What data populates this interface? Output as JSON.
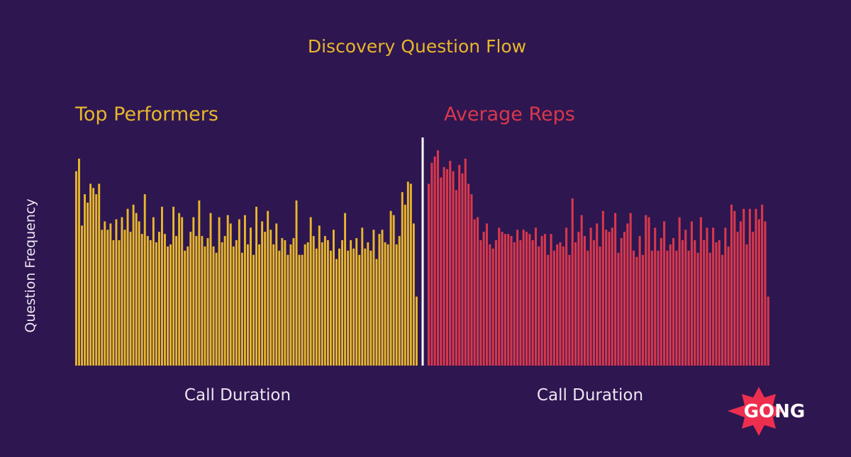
{
  "chart_data": {
    "type": "bar",
    "title": "Discovery Question Flow",
    "ylabel": "Question Frequency",
    "grid": false,
    "panels": [
      {
        "name": "Top Performers",
        "xlabel": "Call Duration",
        "color": "#e8b72c",
        "values": [
          0.93,
          0.99,
          0.67,
          0.82,
          0.78,
          0.87,
          0.85,
          0.82,
          0.87,
          0.65,
          0.69,
          0.65,
          0.68,
          0.6,
          0.7,
          0.6,
          0.71,
          0.65,
          0.75,
          0.64,
          0.77,
          0.73,
          0.69,
          0.63,
          0.82,
          0.62,
          0.6,
          0.71,
          0.59,
          0.64,
          0.76,
          0.63,
          0.57,
          0.58,
          0.76,
          0.62,
          0.73,
          0.71,
          0.55,
          0.57,
          0.64,
          0.71,
          0.62,
          0.79,
          0.62,
          0.57,
          0.61,
          0.73,
          0.57,
          0.54,
          0.71,
          0.59,
          0.62,
          0.72,
          0.68,
          0.57,
          0.6,
          0.7,
          0.54,
          0.72,
          0.58,
          0.66,
          0.53,
          0.76,
          0.58,
          0.69,
          0.64,
          0.74,
          0.65,
          0.58,
          0.68,
          0.55,
          0.61,
          0.6,
          0.53,
          0.58,
          0.61,
          0.79,
          0.53,
          0.53,
          0.58,
          0.59,
          0.71,
          0.62,
          0.56,
          0.67,
          0.59,
          0.62,
          0.6,
          0.55,
          0.65,
          0.51,
          0.56,
          0.6,
          0.73,
          0.55,
          0.6,
          0.56,
          0.61,
          0.53,
          0.66,
          0.56,
          0.59,
          0.55,
          0.65,
          0.51,
          0.63,
          0.65,
          0.59,
          0.58,
          0.74,
          0.72,
          0.58,
          0.62,
          0.83,
          0.77,
          0.88,
          0.87,
          0.68,
          0.33
        ]
      },
      {
        "name": "Average Reps",
        "xlabel": "Call Duration",
        "color": "#d7384c",
        "values": [
          0.87,
          0.97,
          1.0,
          1.03,
          0.9,
          0.95,
          0.94,
          0.98,
          0.93,
          0.84,
          0.96,
          0.92,
          0.99,
          0.87,
          0.82,
          0.7,
          0.71,
          0.6,
          0.64,
          0.68,
          0.58,
          0.56,
          0.6,
          0.66,
          0.64,
          0.63,
          0.63,
          0.62,
          0.59,
          0.65,
          0.6,
          0.65,
          0.64,
          0.63,
          0.6,
          0.66,
          0.57,
          0.62,
          0.63,
          0.53,
          0.63,
          0.55,
          0.58,
          0.59,
          0.57,
          0.66,
          0.53,
          0.8,
          0.59,
          0.64,
          0.72,
          0.62,
          0.55,
          0.66,
          0.6,
          0.68,
          0.57,
          0.74,
          0.65,
          0.64,
          0.66,
          0.73,
          0.54,
          0.61,
          0.64,
          0.68,
          0.73,
          0.55,
          0.52,
          0.62,
          0.53,
          0.72,
          0.71,
          0.55,
          0.66,
          0.55,
          0.61,
          0.69,
          0.55,
          0.58,
          0.61,
          0.55,
          0.71,
          0.6,
          0.65,
          0.55,
          0.69,
          0.6,
          0.54,
          0.71,
          0.6,
          0.66,
          0.54,
          0.66,
          0.59,
          0.6,
          0.53,
          0.66,
          0.57,
          0.77,
          0.74,
          0.64,
          0.69,
          0.75,
          0.58,
          0.75,
          0.64,
          0.75,
          0.7,
          0.77,
          0.69,
          0.33
        ]
      }
    ]
  },
  "logo": {
    "text": "GONG",
    "color": "#ee2e4f"
  }
}
